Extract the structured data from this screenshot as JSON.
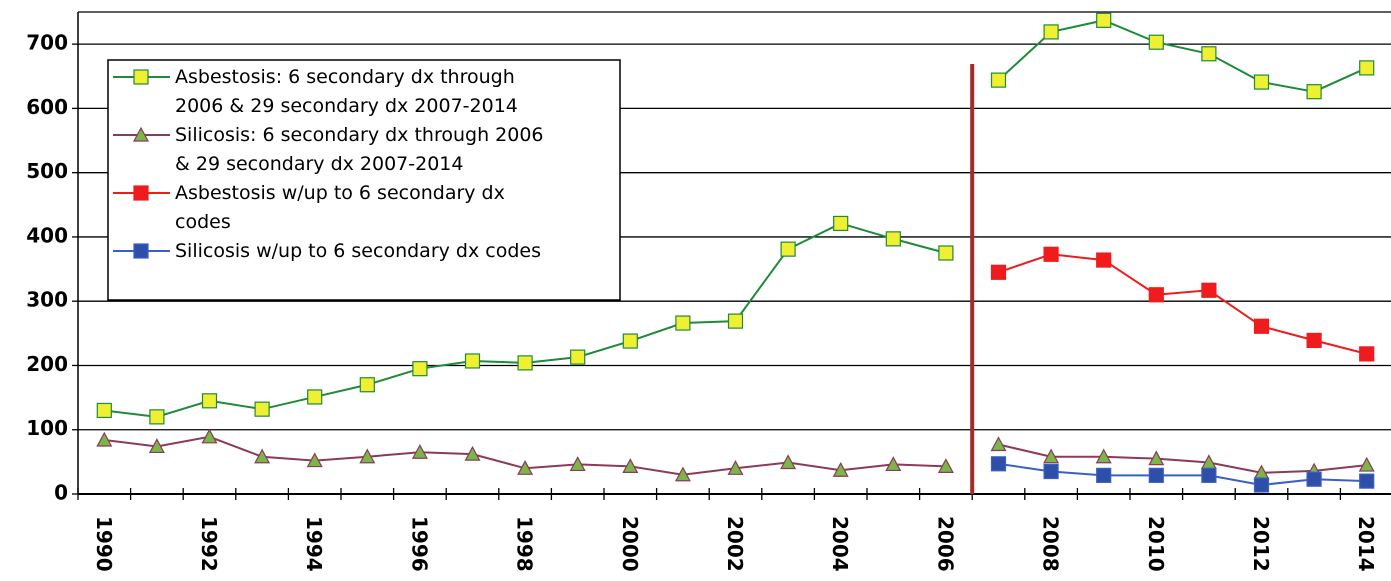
{
  "chart_data": {
    "type": "line",
    "categories": [
      "1990",
      null,
      "1992",
      null,
      "1994",
      null,
      "1996",
      null,
      "1998",
      null,
      "2000",
      null,
      "2002",
      null,
      "2004",
      null,
      "2006",
      null,
      "2008",
      null,
      "2010",
      null,
      "2012",
      null,
      "2014"
    ],
    "series": [
      {
        "name": "Asbestosis: 6 secondary dx through 2006 & 29 secondary dx 2007-2014",
        "color": "#1f8a3a",
        "marker": "square",
        "marker_color": "#f0f032",
        "values": [
          130,
          120,
          145,
          132,
          151,
          170,
          195,
          207,
          204,
          213,
          238,
          266,
          269,
          381,
          421,
          397,
          375,
          644,
          719,
          737,
          703,
          685,
          641,
          626,
          663
        ]
      },
      {
        "name": "Silicosis: 6 secondary dx through 2006 & 29 secondary dx 2007-2014",
        "color": "#8b3a5a",
        "marker": "triangle",
        "marker_color": "#7ab648",
        "values": [
          84,
          74,
          89,
          58,
          52,
          58,
          65,
          62,
          40,
          46,
          43,
          30,
          40,
          49,
          37,
          46,
          43,
          77,
          58,
          58,
          55,
          49,
          33,
          36,
          45
        ]
      },
      {
        "name": "Asbestosis w/up to 6 secondary dx codes",
        "color": "#ee1c1c",
        "marker": "square",
        "marker_color": "#ee1c1c",
        "values": [
          null,
          null,
          null,
          null,
          null,
          null,
          null,
          null,
          null,
          null,
          null,
          null,
          null,
          null,
          null,
          null,
          null,
          345,
          373,
          364,
          310,
          317,
          261,
          239,
          218
        ]
      },
      {
        "name": "Silicosis w/up to 6 secondary dx codes",
        "color": "#3a5fc8",
        "marker": "square",
        "marker_color": "#2e4fa8",
        "values": [
          null,
          null,
          null,
          null,
          null,
          null,
          null,
          null,
          null,
          null,
          null,
          null,
          null,
          null,
          null,
          null,
          null,
          47,
          35,
          29,
          29,
          29,
          14,
          23,
          20
        ]
      }
    ],
    "ylim": [
      0,
      750
    ],
    "yticks": [
      0,
      100,
      200,
      300,
      400,
      500,
      600,
      700
    ],
    "grid": true
  }
}
